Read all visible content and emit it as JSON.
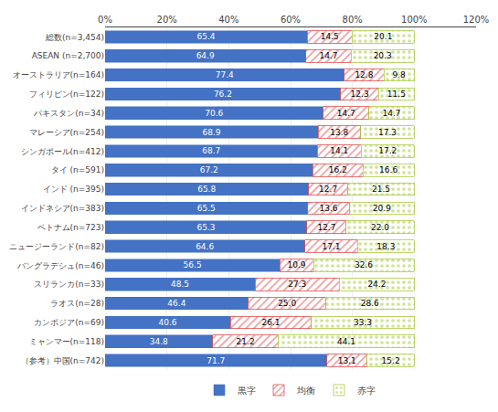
{
  "chart_data": {
    "type": "bar",
    "orientation": "horizontal",
    "stacked": true,
    "categories": [
      "総数(n=3,454)",
      "ASEAN (n=2,700)",
      "オーストラリア(n=164)",
      "フィリピン(n=122)",
      "パキスタン(n=34)",
      "マレーシア(n=254)",
      "シンガポール(n=412)",
      "タイ (n=591)",
      "インド (n=395)",
      "インドネシア(n=383)",
      "ベトナム(n=723)",
      "ニュージーランド(n=82)",
      "バングラデシュ(n=46)",
      "スリランカ(n=33)",
      "ラオス(n=28)",
      "カンボジア(n=69)",
      "ミャンマー(n=118)",
      "（参考）中国(n=742)"
    ],
    "series": [
      {
        "name": "黒字",
        "color": "#4472C4",
        "values": [
          65.4,
          64.9,
          77.4,
          76.2,
          70.6,
          68.9,
          68.7,
          67.2,
          65.8,
          65.5,
          65.3,
          64.6,
          56.5,
          48.5,
          46.4,
          40.6,
          34.8,
          71.7
        ],
        "value_labels": [
          "65.4",
          "64.9",
          "77.4",
          "76.2",
          "70.6",
          "68.9",
          "68.7",
          "67.2",
          "65.8",
          "65.5",
          "65.3",
          "64.6",
          "56.5",
          "48.5",
          "46.4",
          "40.6",
          "34.8",
          "71.7"
        ]
      },
      {
        "name": "均衡",
        "color": "#E05050",
        "values": [
          14.5,
          14.7,
          12.8,
          12.3,
          14.7,
          13.8,
          14.1,
          16.2,
          12.7,
          13.6,
          12.7,
          17.1,
          10.9,
          27.3,
          25.0,
          26.1,
          21.2,
          13.1
        ],
        "value_labels": [
          "14.5",
          "14.7",
          "12.8",
          "12.3",
          "14.7",
          "13.8",
          "14.1",
          "16.2",
          "12.7",
          "13.6",
          "12.7",
          "17.1",
          "10.9",
          "27.3",
          "25.0",
          "26.1",
          "21.2",
          "13.1"
        ]
      },
      {
        "name": "赤字",
        "color": "#AACC44",
        "values": [
          20.1,
          20.3,
          9.8,
          11.5,
          14.7,
          17.3,
          17.2,
          16.6,
          21.5,
          20.9,
          22.0,
          18.3,
          32.6,
          24.2,
          28.6,
          33.3,
          44.1,
          15.2
        ],
        "value_labels": [
          "20.1",
          "20.3",
          "9.8",
          "11.5",
          "14.7",
          "17.3",
          "17.2",
          "16.6",
          "21.5",
          "20.9",
          "22.0",
          "18.3",
          "32.6",
          "24.2",
          "28.6",
          "33.3",
          "44.1",
          "15.2"
        ]
      }
    ],
    "xlim": [
      0,
      120
    ],
    "xticks": [
      {
        "value": 0,
        "label": "0%"
      },
      {
        "value": 20,
        "label": "20%"
      },
      {
        "value": 40,
        "label": "40%"
      },
      {
        "value": 60,
        "label": "60%"
      },
      {
        "value": 80,
        "label": "80%"
      },
      {
        "value": 100,
        "label": "100%"
      },
      {
        "value": 120,
        "label": "120%"
      }
    ],
    "grid": true,
    "data_labels": true,
    "legend": "bottom"
  }
}
